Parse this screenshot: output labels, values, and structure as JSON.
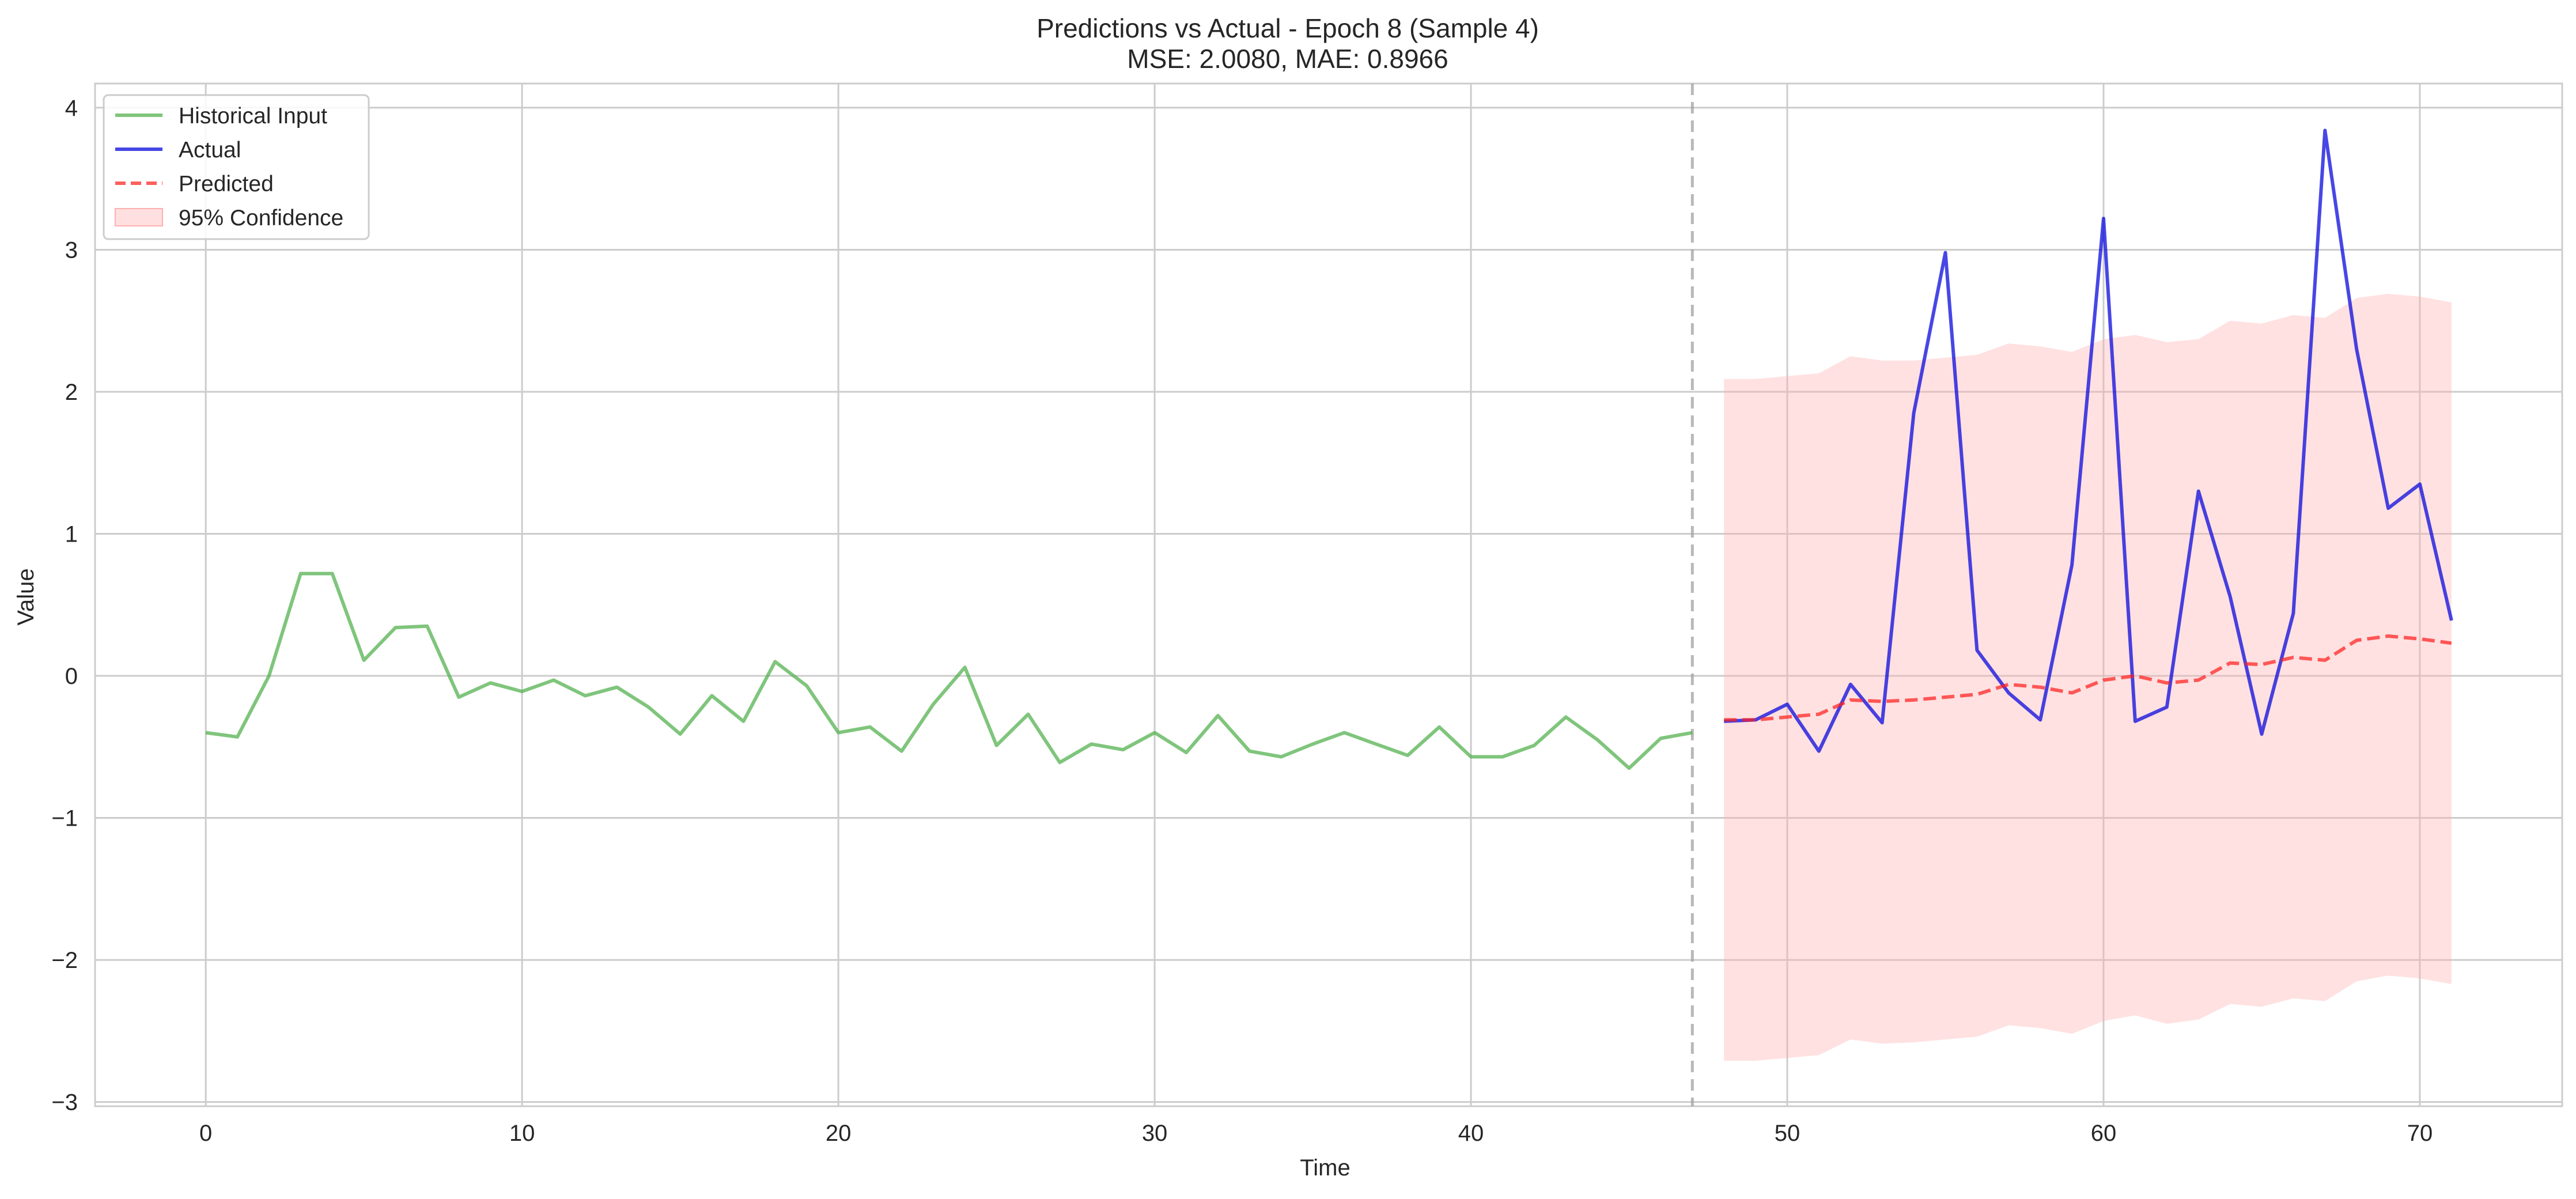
{
  "chart_data": {
    "type": "line",
    "title": "Predictions vs Actual - Epoch 8 (Sample 4)",
    "subtitle": "MSE: 2.0080, MAE: 0.8966",
    "xlabel": "Time",
    "ylabel": "Value",
    "xlim": [
      -3.5,
      74.5
    ],
    "ylim": [
      -3.03,
      4.17
    ],
    "xticks": [
      0,
      10,
      20,
      30,
      40,
      50,
      60,
      70
    ],
    "yticks": [
      -3,
      -2,
      -1,
      0,
      1,
      2,
      3,
      4
    ],
    "grid": true,
    "legend_position": "top-left",
    "vline_x": 47,
    "series": [
      {
        "name": "Historical Input",
        "color": "#4daf4a",
        "style": "solid",
        "x": [
          0,
          1,
          2,
          3,
          4,
          5,
          6,
          7,
          8,
          9,
          10,
          11,
          12,
          13,
          14,
          15,
          16,
          17,
          18,
          19,
          20,
          21,
          22,
          23,
          24,
          25,
          26,
          27,
          28,
          29,
          30,
          31,
          32,
          33,
          34,
          35,
          36,
          37,
          38,
          39,
          40,
          41,
          42,
          43,
          44,
          45,
          46,
          47
        ],
        "values": [
          -0.4,
          -0.43,
          0.0,
          0.72,
          0.72,
          0.11,
          0.34,
          0.35,
          -0.15,
          -0.05,
          -0.11,
          -0.03,
          -0.14,
          -0.08,
          -0.22,
          -0.41,
          -0.14,
          -0.32,
          0.1,
          -0.07,
          -0.4,
          -0.36,
          -0.53,
          -0.2,
          0.06,
          -0.49,
          -0.27,
          -0.61,
          -0.48,
          -0.52,
          -0.4,
          -0.54,
          -0.28,
          -0.53,
          -0.57,
          -0.48,
          -0.4,
          -0.48,
          -0.56,
          -0.36,
          -0.57,
          -0.57,
          -0.49,
          -0.29,
          -0.45,
          -0.65,
          -0.44,
          -0.4
        ]
      },
      {
        "name": "Actual",
        "color": "#0000dd",
        "style": "solid",
        "x": [
          48,
          49,
          50,
          51,
          52,
          53,
          54,
          55,
          56,
          57,
          58,
          59,
          60,
          61,
          62,
          63,
          64,
          65,
          66,
          67,
          68,
          69,
          70,
          71
        ],
        "values": [
          -0.32,
          -0.31,
          -0.2,
          -0.53,
          -0.06,
          -0.33,
          1.85,
          2.98,
          0.18,
          -0.12,
          -0.31,
          0.78,
          3.22,
          -0.32,
          -0.22,
          1.3,
          0.56,
          -0.41,
          0.44,
          3.84,
          2.3,
          1.18,
          1.35,
          0.39
        ]
      },
      {
        "name": "Predicted",
        "color": "#ff2020",
        "style": "dashed",
        "x": [
          48,
          49,
          50,
          51,
          52,
          53,
          54,
          55,
          56,
          57,
          58,
          59,
          60,
          61,
          62,
          63,
          64,
          65,
          66,
          67,
          68,
          69,
          70,
          71
        ],
        "values": [
          -0.31,
          -0.31,
          -0.29,
          -0.27,
          -0.17,
          -0.18,
          -0.17,
          -0.15,
          -0.13,
          -0.06,
          -0.08,
          -0.12,
          -0.03,
          0.0,
          -0.05,
          -0.03,
          0.09,
          0.08,
          0.13,
          0.11,
          0.25,
          0.28,
          0.26,
          0.23
        ]
      }
    ],
    "confidence": {
      "name": "95% Confidence",
      "color": "#ffb0b0",
      "x": [
        48,
        49,
        50,
        51,
        52,
        53,
        54,
        55,
        56,
        57,
        58,
        59,
        60,
        61,
        62,
        63,
        64,
        65,
        66,
        67,
        68,
        69,
        70,
        71
      ],
      "upper": [
        2.09,
        2.09,
        2.11,
        2.13,
        2.25,
        2.22,
        2.22,
        2.24,
        2.26,
        2.34,
        2.32,
        2.28,
        2.37,
        2.4,
        2.35,
        2.37,
        2.5,
        2.48,
        2.54,
        2.52,
        2.66,
        2.69,
        2.67,
        2.63
      ],
      "lower": [
        -2.71,
        -2.71,
        -2.69,
        -2.67,
        -2.56,
        -2.59,
        -2.58,
        -2.56,
        -2.54,
        -2.46,
        -2.48,
        -2.52,
        -2.43,
        -2.39,
        -2.45,
        -2.42,
        -2.31,
        -2.33,
        -2.27,
        -2.29,
        -2.15,
        -2.11,
        -2.13,
        -2.17
      ]
    }
  }
}
